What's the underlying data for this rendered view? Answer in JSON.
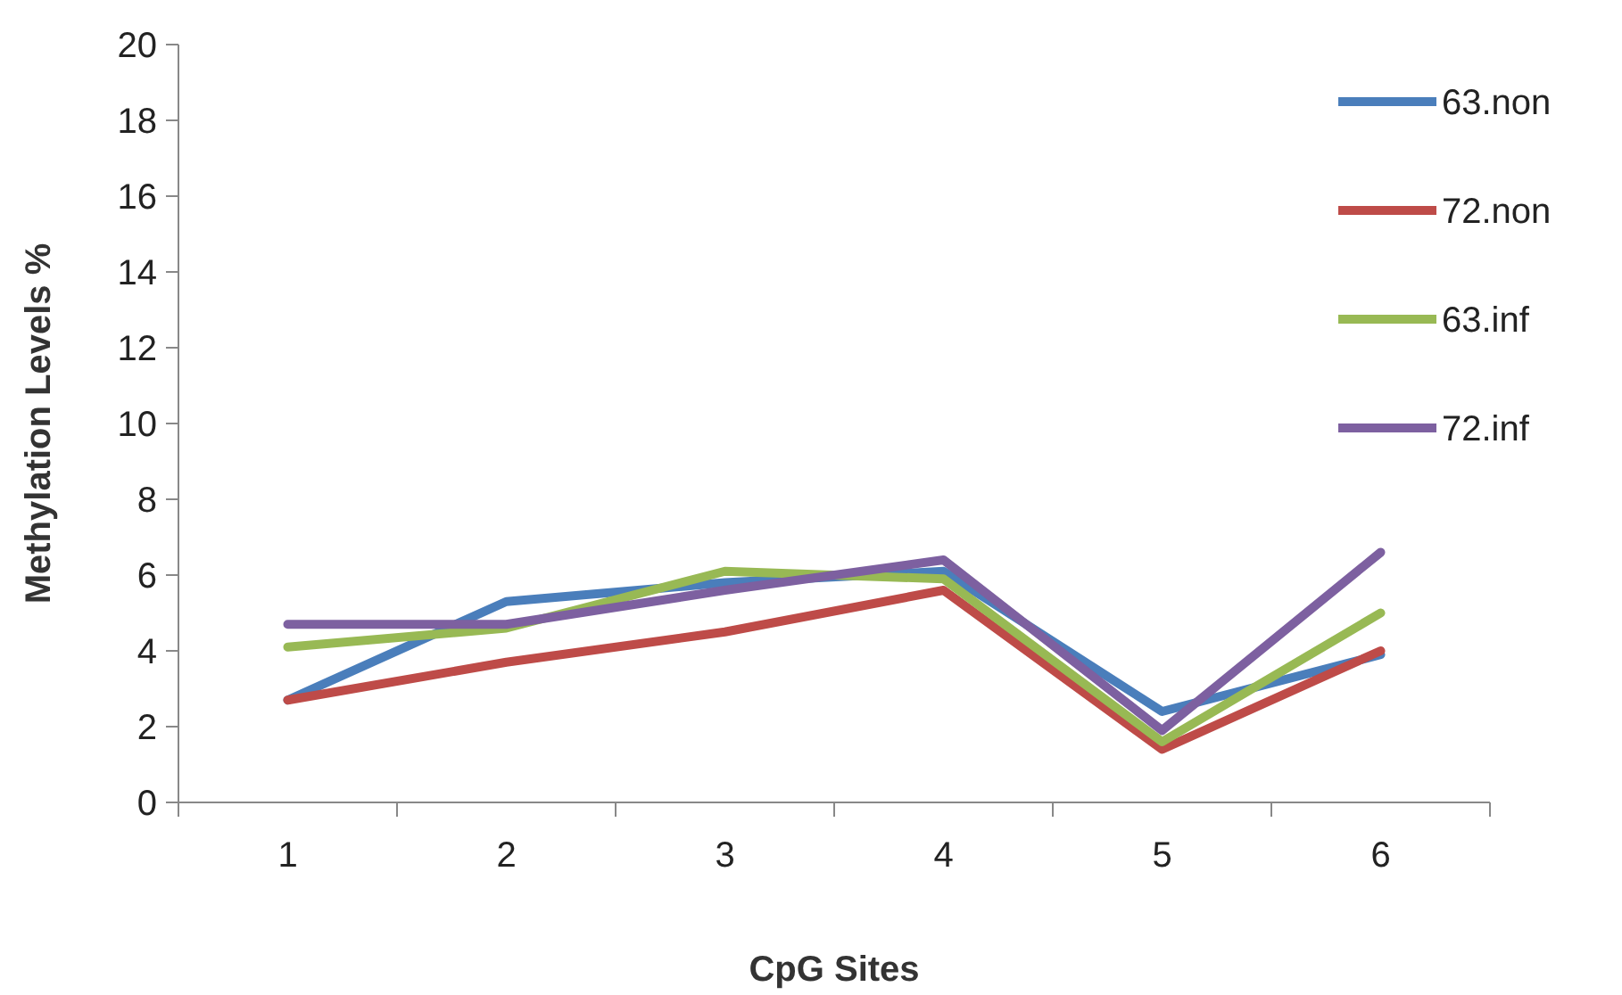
{
  "chart_data": {
    "type": "line",
    "xlabel": "CpG Sites",
    "ylabel": "Methylation Levels %",
    "categories": [
      "1",
      "2",
      "3",
      "4",
      "5",
      "6"
    ],
    "ylim": [
      0,
      20
    ],
    "yticks": [
      0,
      2,
      4,
      6,
      8,
      10,
      12,
      14,
      16,
      18,
      20
    ],
    "legend": "top right",
    "marker": "none",
    "line_style": "solid",
    "grid": false,
    "series": [
      {
        "name": "63.non",
        "color": "#4a7ebb",
        "values": [
          2.7,
          5.3,
          5.8,
          6.1,
          2.4,
          3.9
        ]
      },
      {
        "name": "72.non",
        "color": "#be4b48",
        "values": [
          2.7,
          3.7,
          4.5,
          5.6,
          1.4,
          4.0
        ]
      },
      {
        "name": "63.inf",
        "color": "#98b954",
        "values": [
          4.1,
          4.6,
          6.1,
          5.9,
          1.6,
          5.0
        ]
      },
      {
        "name": "72.inf",
        "color": "#7d60a0",
        "values": [
          4.7,
          4.7,
          5.6,
          6.4,
          1.9,
          6.6
        ]
      }
    ]
  }
}
